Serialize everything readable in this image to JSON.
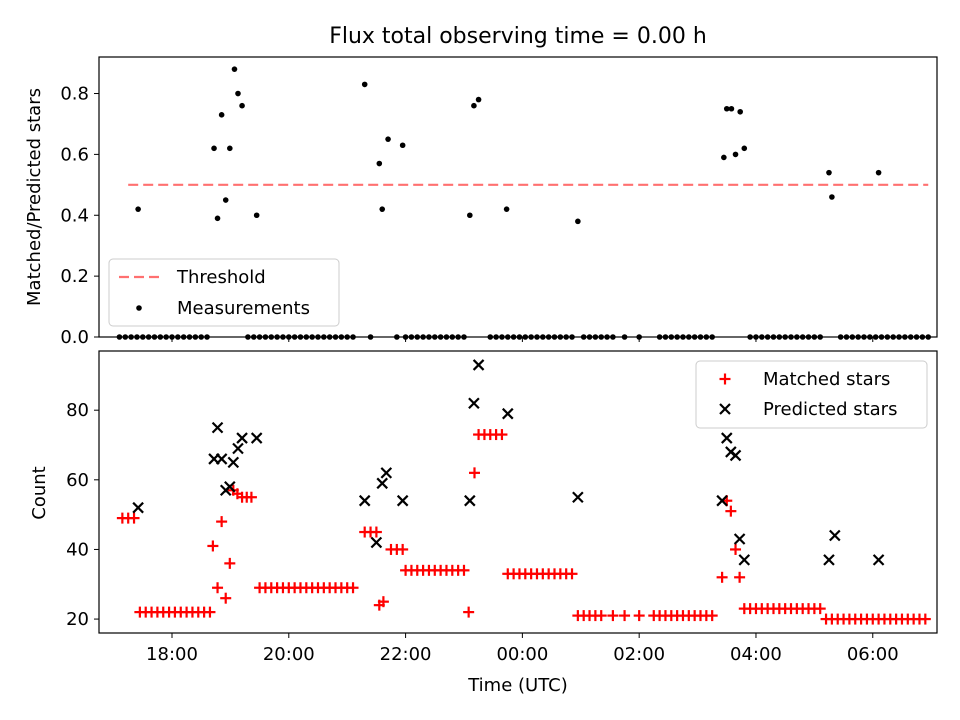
{
  "chart_data": [
    {
      "type": "scatter",
      "title": "Flux total observing time = 0.00 h",
      "xlabel": "",
      "ylabel": "Matched/Predicted stars",
      "xlim": [
        16.75,
        31.1
      ],
      "ylim": [
        0,
        0.92
      ],
      "yticks": [
        "0.0",
        "0.2",
        "0.4",
        "0.6",
        "0.8"
      ],
      "legend_position": "lower-left",
      "threshold": {
        "name": "Threshold",
        "value": 0.5,
        "x_range": [
          17.25,
          30.95
        ],
        "color": "#ff7070"
      },
      "series": [
        {
          "name": "Measurements",
          "color": "#000000",
          "points": [
            [
              17.42,
              0.42
            ],
            [
              18.72,
              0.62
            ],
            [
              18.78,
              0.39
            ],
            [
              18.85,
              0.73
            ],
            [
              18.92,
              0.45
            ],
            [
              18.99,
              0.62
            ],
            [
              19.07,
              0.88
            ],
            [
              19.13,
              0.8
            ],
            [
              19.2,
              0.76
            ],
            [
              19.45,
              0.4
            ],
            [
              21.3,
              0.83
            ],
            [
              21.55,
              0.57
            ],
            [
              21.6,
              0.42
            ],
            [
              21.7,
              0.65
            ],
            [
              21.95,
              0.63
            ],
            [
              23.1,
              0.4
            ],
            [
              23.17,
              0.76
            ],
            [
              23.25,
              0.78
            ],
            [
              23.73,
              0.42
            ],
            [
              24.95,
              0.38
            ],
            [
              27.45,
              0.59
            ],
            [
              27.5,
              0.75
            ],
            [
              27.58,
              0.75
            ],
            [
              27.65,
              0.6
            ],
            [
              27.73,
              0.74
            ],
            [
              27.8,
              0.62
            ],
            [
              29.25,
              0.54
            ],
            [
              29.3,
              0.46
            ],
            [
              30.1,
              0.54
            ]
          ],
          "zero_points_x": [
            17.1,
            17.2,
            17.3,
            17.4,
            17.5,
            17.6,
            17.7,
            17.8,
            17.9,
            18.0,
            18.1,
            18.2,
            18.3,
            18.4,
            18.5,
            18.6,
            19.3,
            19.4,
            19.5,
            19.6,
            19.7,
            19.8,
            19.9,
            20.0,
            20.1,
            20.2,
            20.3,
            20.4,
            20.5,
            20.6,
            20.7,
            20.8,
            20.9,
            21.0,
            21.1,
            21.4,
            21.85,
            22.0,
            22.1,
            22.2,
            22.3,
            22.4,
            22.5,
            22.6,
            22.7,
            22.8,
            22.9,
            23.0,
            23.45,
            23.55,
            23.65,
            23.75,
            23.85,
            23.95,
            24.05,
            24.15,
            24.25,
            24.35,
            24.45,
            24.55,
            24.65,
            24.75,
            24.85,
            25.05,
            25.15,
            25.25,
            25.35,
            25.45,
            25.55,
            25.75,
            26.0,
            26.35,
            26.45,
            26.55,
            26.65,
            26.75,
            26.85,
            26.95,
            27.05,
            27.15,
            27.25,
            27.9,
            28.0,
            28.1,
            28.2,
            28.3,
            28.4,
            28.5,
            28.6,
            28.7,
            28.8,
            28.9,
            29.0,
            29.1,
            29.45,
            29.55,
            29.65,
            29.75,
            29.85,
            29.95,
            30.05,
            30.15,
            30.25,
            30.35,
            30.45,
            30.55,
            30.65,
            30.75,
            30.85,
            30.95
          ]
        }
      ]
    },
    {
      "type": "scatter",
      "title": "",
      "xlabel": "Time (UTC)",
      "ylabel": "Count",
      "xlim": [
        16.75,
        31.1
      ],
      "ylim": [
        16,
        97
      ],
      "yticks": [
        "20",
        "40",
        "60",
        "80"
      ],
      "xticks": [
        {
          "value": 18,
          "label": "18:00"
        },
        {
          "value": 20,
          "label": "20:00"
        },
        {
          "value": 22,
          "label": "22:00"
        },
        {
          "value": 24,
          "label": "00:00"
        },
        {
          "value": 26,
          "label": "02:00"
        },
        {
          "value": 28,
          "label": "04:00"
        },
        {
          "value": 30,
          "label": "06:00"
        }
      ],
      "legend_position": "top-right",
      "series": [
        {
          "name": "Matched stars",
          "color": "#ff0000",
          "marker": "plus",
          "points": [
            [
              17.15,
              49
            ],
            [
              17.25,
              49
            ],
            [
              17.35,
              49
            ],
            [
              17.45,
              22
            ],
            [
              17.55,
              22
            ],
            [
              17.65,
              22
            ],
            [
              17.75,
              22
            ],
            [
              17.85,
              22
            ],
            [
              17.95,
              22
            ],
            [
              18.05,
              22
            ],
            [
              18.15,
              22
            ],
            [
              18.25,
              22
            ],
            [
              18.35,
              22
            ],
            [
              18.45,
              22
            ],
            [
              18.55,
              22
            ],
            [
              18.65,
              22
            ],
            [
              18.7,
              41
            ],
            [
              18.78,
              29
            ],
            [
              18.85,
              48
            ],
            [
              18.92,
              26
            ],
            [
              18.99,
              36
            ],
            [
              19.05,
              57
            ],
            [
              19.12,
              56
            ],
            [
              19.2,
              55
            ],
            [
              19.28,
              55
            ],
            [
              19.36,
              55
            ],
            [
              19.5,
              29
            ],
            [
              19.6,
              29
            ],
            [
              19.7,
              29
            ],
            [
              19.8,
              29
            ],
            [
              19.9,
              29
            ],
            [
              20.0,
              29
            ],
            [
              20.1,
              29
            ],
            [
              20.2,
              29
            ],
            [
              20.3,
              29
            ],
            [
              20.4,
              29
            ],
            [
              20.5,
              29
            ],
            [
              20.6,
              29
            ],
            [
              20.7,
              29
            ],
            [
              20.8,
              29
            ],
            [
              20.9,
              29
            ],
            [
              21.0,
              29
            ],
            [
              21.1,
              29
            ],
            [
              21.3,
              45
            ],
            [
              21.4,
              45
            ],
            [
              21.5,
              45
            ],
            [
              21.55,
              24
            ],
            [
              21.62,
              25
            ],
            [
              21.75,
              40
            ],
            [
              21.85,
              40
            ],
            [
              21.95,
              40
            ],
            [
              22.0,
              34
            ],
            [
              22.1,
              34
            ],
            [
              22.2,
              34
            ],
            [
              22.3,
              34
            ],
            [
              22.4,
              34
            ],
            [
              22.5,
              34
            ],
            [
              22.6,
              34
            ],
            [
              22.7,
              34
            ],
            [
              22.8,
              34
            ],
            [
              22.9,
              34
            ],
            [
              23.0,
              34
            ],
            [
              23.08,
              22
            ],
            [
              23.18,
              62
            ],
            [
              23.25,
              73
            ],
            [
              23.35,
              73
            ],
            [
              23.45,
              73
            ],
            [
              23.55,
              73
            ],
            [
              23.65,
              73
            ],
            [
              23.75,
              33
            ],
            [
              23.85,
              33
            ],
            [
              23.95,
              33
            ],
            [
              24.05,
              33
            ],
            [
              24.15,
              33
            ],
            [
              24.25,
              33
            ],
            [
              24.35,
              33
            ],
            [
              24.45,
              33
            ],
            [
              24.55,
              33
            ],
            [
              24.65,
              33
            ],
            [
              24.75,
              33
            ],
            [
              24.85,
              33
            ],
            [
              24.95,
              21
            ],
            [
              25.05,
              21
            ],
            [
              25.15,
              21
            ],
            [
              25.25,
              21
            ],
            [
              25.35,
              21
            ],
            [
              25.55,
              21
            ],
            [
              25.75,
              21
            ],
            [
              26.0,
              21
            ],
            [
              26.25,
              21
            ],
            [
              26.35,
              21
            ],
            [
              26.45,
              21
            ],
            [
              26.55,
              21
            ],
            [
              26.65,
              21
            ],
            [
              26.75,
              21
            ],
            [
              26.85,
              21
            ],
            [
              26.95,
              21
            ],
            [
              27.05,
              21
            ],
            [
              27.15,
              21
            ],
            [
              27.25,
              21
            ],
            [
              27.42,
              32
            ],
            [
              27.5,
              54
            ],
            [
              27.57,
              51
            ],
            [
              27.65,
              40
            ],
            [
              27.72,
              32
            ],
            [
              27.8,
              23
            ],
            [
              27.9,
              23
            ],
            [
              28.0,
              23
            ],
            [
              28.1,
              23
            ],
            [
              28.2,
              23
            ],
            [
              28.3,
              23
            ],
            [
              28.4,
              23
            ],
            [
              28.5,
              23
            ],
            [
              28.6,
              23
            ],
            [
              28.7,
              23
            ],
            [
              28.8,
              23
            ],
            [
              28.9,
              23
            ],
            [
              29.0,
              23
            ],
            [
              29.1,
              23
            ],
            [
              29.2,
              20
            ],
            [
              29.3,
              20
            ],
            [
              29.4,
              20
            ],
            [
              29.5,
              20
            ],
            [
              29.6,
              20
            ],
            [
              29.7,
              20
            ],
            [
              29.8,
              20
            ],
            [
              29.9,
              20
            ],
            [
              30.0,
              20
            ],
            [
              30.1,
              20
            ],
            [
              30.2,
              20
            ],
            [
              30.3,
              20
            ],
            [
              30.4,
              20
            ],
            [
              30.5,
              20
            ],
            [
              30.6,
              20
            ],
            [
              30.7,
              20
            ],
            [
              30.8,
              20
            ],
            [
              30.9,
              20
            ]
          ]
        },
        {
          "name": "Predicted stars",
          "color": "#000000",
          "marker": "x",
          "points": [
            [
              17.42,
              52
            ],
            [
              18.72,
              66
            ],
            [
              18.78,
              75
            ],
            [
              18.85,
              66
            ],
            [
              18.92,
              57
            ],
            [
              18.99,
              58
            ],
            [
              19.05,
              65
            ],
            [
              19.13,
              69
            ],
            [
              19.2,
              72
            ],
            [
              19.45,
              72
            ],
            [
              21.3,
              54
            ],
            [
              21.5,
              42
            ],
            [
              21.6,
              59
            ],
            [
              21.67,
              62
            ],
            [
              21.95,
              54
            ],
            [
              23.1,
              54
            ],
            [
              23.17,
              82
            ],
            [
              23.25,
              93
            ],
            [
              23.75,
              79
            ],
            [
              24.95,
              55
            ],
            [
              27.42,
              54
            ],
            [
              27.5,
              72
            ],
            [
              27.57,
              68
            ],
            [
              27.65,
              67
            ],
            [
              27.72,
              43
            ],
            [
              27.8,
              37
            ],
            [
              29.25,
              37
            ],
            [
              29.35,
              44
            ],
            [
              30.1,
              37
            ]
          ]
        }
      ]
    }
  ]
}
